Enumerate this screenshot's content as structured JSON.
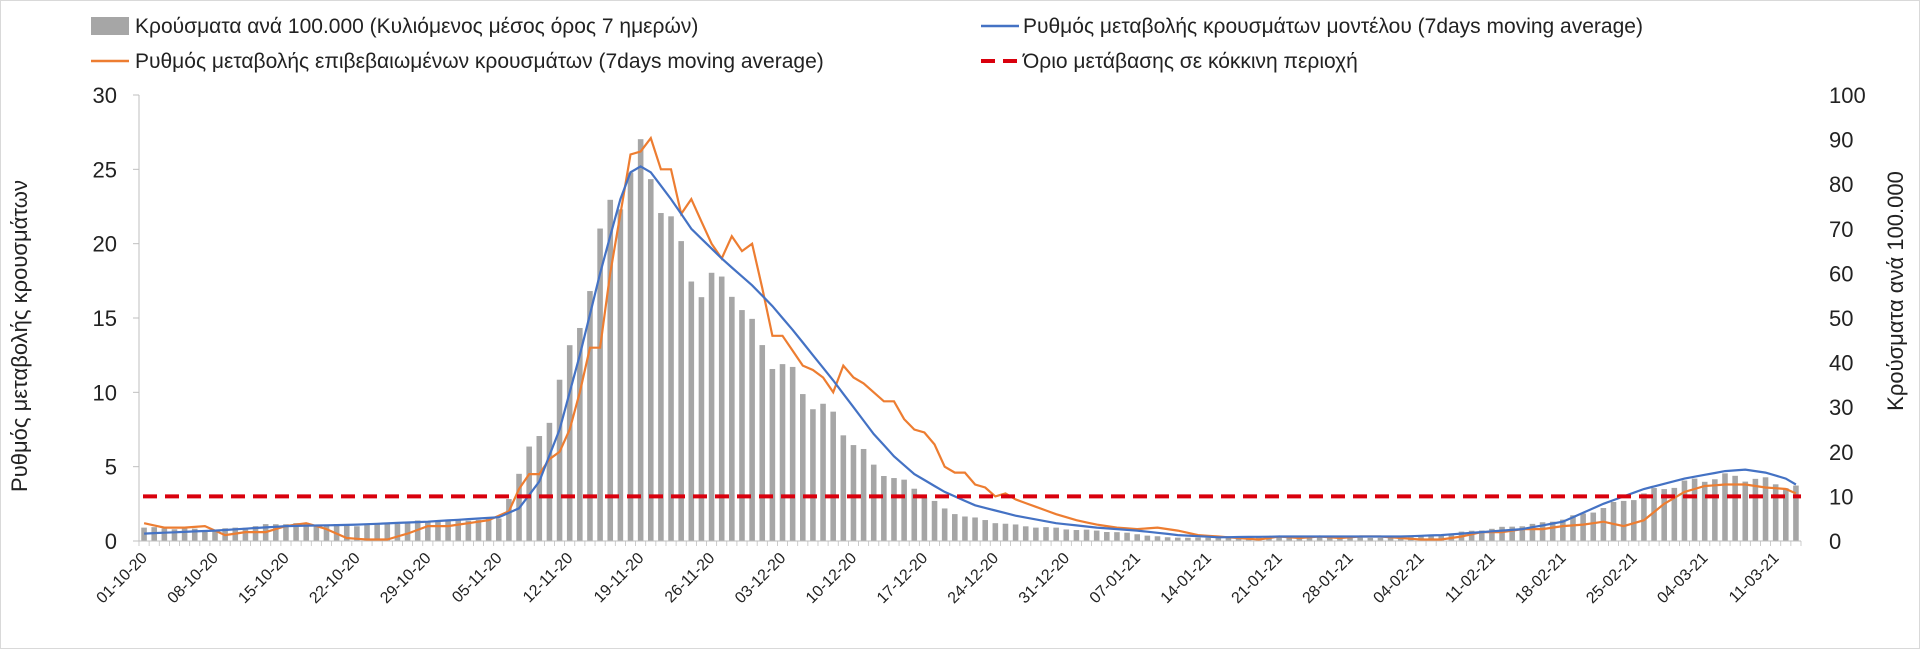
{
  "chart_data": {
    "type": "bar",
    "title": "",
    "legend": [
      {
        "key": "bars",
        "label": "Κρούσματα ανά 100.000 (Κυλιόμενος μέσος όρος 7 ημερών)",
        "color": "#a6a6a6",
        "kind": "bar"
      },
      {
        "key": "model",
        "label": "Ρυθμός μεταβολής κρουσμάτων μοντέλου (7days moving average)",
        "color": "#4472c4",
        "kind": "line"
      },
      {
        "key": "confirmed",
        "label": "Ρυθμός μεταβολής επιβεβαιωμένων κρουσμάτων (7days moving average)",
        "color": "#ed7d31",
        "kind": "line"
      },
      {
        "key": "threshold",
        "label": "Όριο μετάβασης σε κόκκινη περιοχή",
        "color": "#d9000d",
        "kind": "dashed"
      }
    ],
    "ylabel_left": "Ρυθμός μεταβολής κρουσμάτων",
    "ylabel_right": "Κρούσματα ανά 100.000",
    "ylim_left": [
      0,
      30
    ],
    "ylim_right": [
      0,
      100
    ],
    "yticks_left": [
      "0",
      "5",
      "10",
      "15",
      "20",
      "25",
      "30"
    ],
    "yticks_right": [
      "0",
      "10",
      "20",
      "30",
      "40",
      "50",
      "60",
      "70",
      "80",
      "90",
      "100"
    ],
    "xtick_labels": [
      "01-10-20",
      "08-10-20",
      "15-10-20",
      "22-10-20",
      "29-10-20",
      "05-11-20",
      "12-11-20",
      "19-11-20",
      "26-11-20",
      "03-12-20",
      "10-12-20",
      "17-12-20",
      "24-12-20",
      "31-12-20",
      "07-01-21",
      "14-01-21",
      "21-01-21",
      "28-01-21",
      "04-02-21",
      "11-02-21",
      "18-02-21",
      "25-02-21",
      "04-03-21",
      "11-03-21"
    ],
    "threshold_value": 3,
    "bar_anchors": [
      [
        0,
        3
      ],
      [
        7,
        2.5
      ],
      [
        14,
        4
      ],
      [
        21,
        3.5
      ],
      [
        28,
        4.5
      ],
      [
        35,
        5
      ],
      [
        38,
        20
      ],
      [
        40,
        28
      ],
      [
        42,
        42
      ],
      [
        44,
        58
      ],
      [
        46,
        75
      ],
      [
        48,
        83
      ],
      [
        49,
        85
      ],
      [
        50,
        82
      ],
      [
        51,
        78
      ],
      [
        53,
        64
      ],
      [
        55,
        57
      ],
      [
        58,
        58
      ],
      [
        60,
        47
      ],
      [
        62,
        41
      ],
      [
        64,
        37
      ],
      [
        66,
        31
      ],
      [
        68,
        28
      ],
      [
        70,
        22
      ],
      [
        72,
        17
      ],
      [
        74,
        14
      ],
      [
        76,
        12
      ],
      [
        79,
        7
      ],
      [
        82,
        5
      ],
      [
        86,
        3.5
      ],
      [
        91,
        2.7
      ],
      [
        96,
        2
      ],
      [
        101,
        0.8
      ],
      [
        106,
        0.7
      ],
      [
        112,
        0.9
      ],
      [
        118,
        0.8
      ],
      [
        122,
        0.7
      ],
      [
        126,
        1
      ],
      [
        130,
        2
      ],
      [
        134,
        3
      ],
      [
        138,
        4
      ],
      [
        142,
        6
      ],
      [
        146,
        9
      ],
      [
        150,
        12
      ],
      [
        154,
        14
      ],
      [
        157,
        14.5
      ],
      [
        160,
        13.5
      ],
      [
        163,
        12
      ]
    ],
    "model_anchors": [
      [
        0,
        0.5
      ],
      [
        7,
        0.7
      ],
      [
        14,
        1
      ],
      [
        21,
        1.1
      ],
      [
        28,
        1.3
      ],
      [
        35,
        1.6
      ],
      [
        37,
        2.2
      ],
      [
        39,
        4
      ],
      [
        41,
        7.5
      ],
      [
        43,
        12.5
      ],
      [
        45,
        18
      ],
      [
        47,
        23
      ],
      [
        48,
        24.8
      ],
      [
        49,
        25.2
      ],
      [
        50,
        24.8
      ],
      [
        52,
        23
      ],
      [
        54,
        21
      ],
      [
        57,
        19
      ],
      [
        60,
        17.2
      ],
      [
        62,
        15.8
      ],
      [
        64,
        14.2
      ],
      [
        66,
        12.5
      ],
      [
        68,
        10.8
      ],
      [
        70,
        9
      ],
      [
        72,
        7.2
      ],
      [
        74,
        5.7
      ],
      [
        76,
        4.5
      ],
      [
        79,
        3.3
      ],
      [
        82,
        2.4
      ],
      [
        86,
        1.7
      ],
      [
        90,
        1.2
      ],
      [
        94,
        0.9
      ],
      [
        98,
        0.7
      ],
      [
        102,
        0.4
      ],
      [
        106,
        0.25
      ],
      [
        112,
        0.3
      ],
      [
        118,
        0.3
      ],
      [
        124,
        0.3
      ],
      [
        128,
        0.4
      ],
      [
        132,
        0.6
      ],
      [
        136,
        0.8
      ],
      [
        140,
        1.3
      ],
      [
        144,
        2.5
      ],
      [
        148,
        3.5
      ],
      [
        152,
        4.2
      ],
      [
        156,
        4.7
      ],
      [
        158,
        4.8
      ],
      [
        160,
        4.6
      ],
      [
        162,
        4.2
      ],
      [
        163,
        3.8
      ]
    ],
    "confirmed_anchors": [
      [
        0,
        1.2
      ],
      [
        2,
        0.9
      ],
      [
        4,
        0.9
      ],
      [
        6,
        1
      ],
      [
        8,
        0.4
      ],
      [
        10,
        0.6
      ],
      [
        12,
        0.6
      ],
      [
        14,
        1
      ],
      [
        16,
        1.2
      ],
      [
        18,
        0.8
      ],
      [
        20,
        0.2
      ],
      [
        22,
        0.1
      ],
      [
        24,
        0.1
      ],
      [
        26,
        0.5
      ],
      [
        28,
        1
      ],
      [
        30,
        1
      ],
      [
        32,
        1.2
      ],
      [
        34,
        1.4
      ],
      [
        36,
        2
      ],
      [
        37,
        3.5
      ],
      [
        38,
        4.5
      ],
      [
        39,
        4.5
      ],
      [
        40,
        5.5
      ],
      [
        41,
        6
      ],
      [
        42,
        7.5
      ],
      [
        43,
        10
      ],
      [
        44,
        13
      ],
      [
        45,
        13
      ],
      [
        46,
        18
      ],
      [
        47,
        22
      ],
      [
        48,
        26
      ],
      [
        49,
        26.2
      ],
      [
        50,
        27.1
      ],
      [
        51,
        25
      ],
      [
        52,
        25
      ],
      [
        53,
        22
      ],
      [
        54,
        23
      ],
      [
        55,
        21.5
      ],
      [
        56,
        20
      ],
      [
        57,
        19
      ],
      [
        58,
        20.5
      ],
      [
        59,
        19.5
      ],
      [
        60,
        20
      ],
      [
        61,
        17
      ],
      [
        62,
        13.8
      ],
      [
        63,
        13.8
      ],
      [
        64,
        12.8
      ],
      [
        65,
        11.8
      ],
      [
        66,
        11.5
      ],
      [
        67,
        11
      ],
      [
        68,
        10
      ],
      [
        69,
        11.8
      ],
      [
        70,
        11
      ],
      [
        71,
        10.6
      ],
      [
        72,
        10
      ],
      [
        73,
        9.4
      ],
      [
        74,
        9.4
      ],
      [
        75,
        8.2
      ],
      [
        76,
        7.5
      ],
      [
        77,
        7.3
      ],
      [
        78,
        6.5
      ],
      [
        79,
        5
      ],
      [
        80,
        4.6
      ],
      [
        81,
        4.6
      ],
      [
        82,
        3.8
      ],
      [
        83,
        3.6
      ],
      [
        84,
        3
      ],
      [
        85,
        3.2
      ],
      [
        86,
        2.8
      ],
      [
        88,
        2.3
      ],
      [
        90,
        1.8
      ],
      [
        92,
        1.4
      ],
      [
        94,
        1.1
      ],
      [
        96,
        0.9
      ],
      [
        98,
        0.8
      ],
      [
        100,
        0.9
      ],
      [
        102,
        0.7
      ],
      [
        104,
        0.4
      ],
      [
        106,
        0.3
      ],
      [
        108,
        0.2
      ],
      [
        110,
        0.1
      ],
      [
        112,
        0.3
      ],
      [
        114,
        0.2
      ],
      [
        116,
        0.3
      ],
      [
        118,
        0.2
      ],
      [
        120,
        0.3
      ],
      [
        122,
        0.3
      ],
      [
        124,
        0.2
      ],
      [
        126,
        0.1
      ],
      [
        128,
        0.1
      ],
      [
        130,
        0.3
      ],
      [
        132,
        0.6
      ],
      [
        134,
        0.6
      ],
      [
        136,
        0.8
      ],
      [
        138,
        0.8
      ],
      [
        140,
        1
      ],
      [
        142,
        1.1
      ],
      [
        144,
        1.3
      ],
      [
        146,
        1
      ],
      [
        148,
        1.4
      ],
      [
        150,
        2.5
      ],
      [
        152,
        3.3
      ],
      [
        154,
        3.7
      ],
      [
        156,
        3.8
      ],
      [
        158,
        3.8
      ],
      [
        160,
        3.6
      ],
      [
        162,
        3.5
      ],
      [
        163,
        3.2
      ]
    ]
  }
}
